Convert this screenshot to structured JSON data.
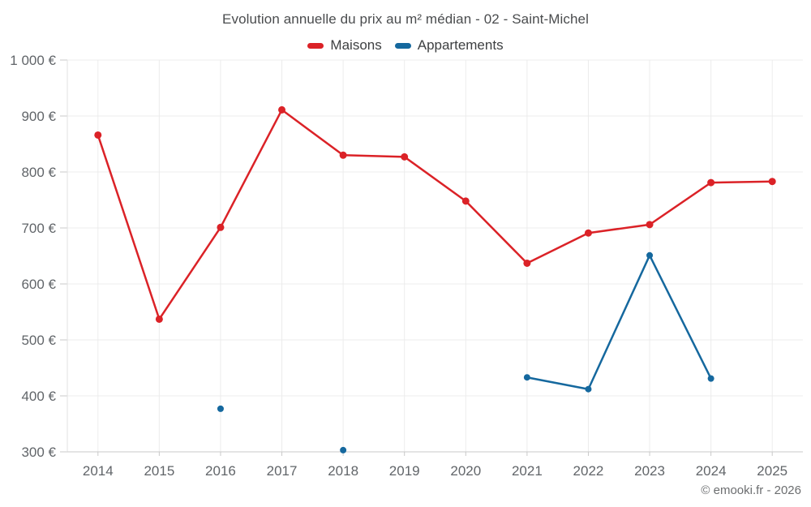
{
  "header": {
    "title": "Evolution annuelle du prix au m² médian - 02 - Saint-Michel"
  },
  "legend": {
    "items": [
      {
        "label": "Maisons",
        "color": "#db2227"
      },
      {
        "label": "Appartements",
        "color": "#15689e"
      }
    ]
  },
  "footer": {
    "copyright": "© emooki.fr - 2026"
  },
  "chart_data": {
    "type": "line",
    "title": "Evolution annuelle du prix au m² médian - 02 - Saint-Michel",
    "xlabel": "",
    "ylabel": "",
    "categories": [
      "2014",
      "2015",
      "2016",
      "2017",
      "2018",
      "2019",
      "2020",
      "2021",
      "2022",
      "2023",
      "2024",
      "2025"
    ],
    "series": [
      {
        "name": "Maisons",
        "color": "#db2227",
        "values": [
          866,
          537,
          701,
          911,
          830,
          827,
          748,
          637,
          691,
          706,
          781,
          783
        ]
      },
      {
        "name": "Appartements",
        "color": "#15689e",
        "values": [
          null,
          null,
          377,
          null,
          303,
          null,
          null,
          433,
          412,
          651,
          431,
          null
        ]
      }
    ],
    "ylim": [
      300,
      1000
    ],
    "yticks": [
      {
        "value": 300,
        "label": "300 €"
      },
      {
        "value": 400,
        "label": "400 €"
      },
      {
        "value": 500,
        "label": "500 €"
      },
      {
        "value": 600,
        "label": "600 €"
      },
      {
        "value": 700,
        "label": "700 €"
      },
      {
        "value": 800,
        "label": "800 €"
      },
      {
        "value": 900,
        "label": "900 €"
      },
      {
        "value": 1000,
        "label": "1 000 €"
      }
    ],
    "grid": true,
    "legend_position": "top",
    "grid_color": "#ececec",
    "axis_line_color": "#c9c9c9",
    "tick_label_color": "#616569"
  }
}
